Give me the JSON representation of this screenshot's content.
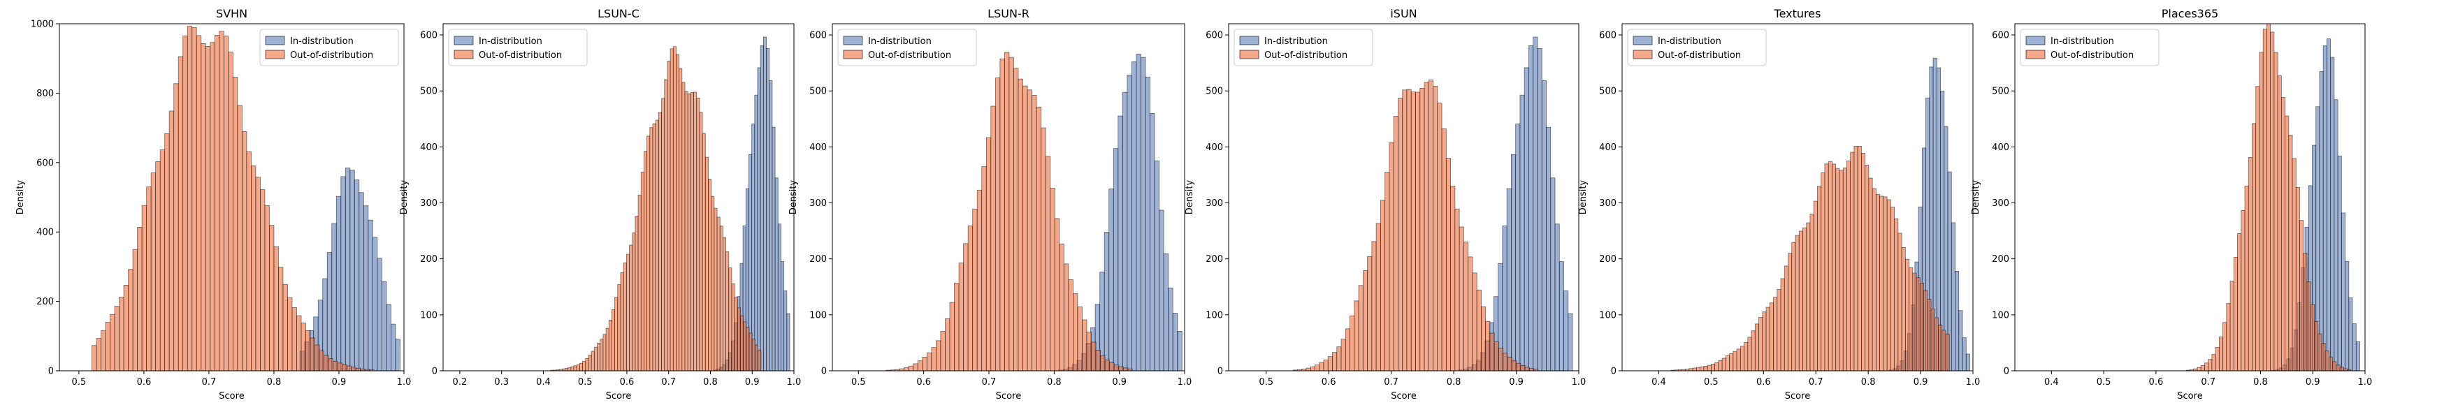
{
  "colors": {
    "in_distribution": "#4c72b0",
    "out_of_distribution": "#f0703c",
    "edge": "#000000"
  },
  "chart_data": [
    {
      "type": "histogram",
      "title": "SVHN",
      "xlabel": "Score",
      "ylabel": "Density",
      "xlim": [
        0.47,
        1.0
      ],
      "ylim": [
        0,
        1000
      ],
      "xticks": [
        0.5,
        0.6,
        0.7,
        0.8,
        0.9,
        1.0
      ],
      "yticks": [
        0,
        200,
        400,
        600,
        800,
        1000
      ],
      "legend": {
        "position": "top-right",
        "entries": [
          "In-distribution",
          "Out-of-distribution"
        ]
      },
      "series": [
        {
          "name": "In-distribution",
          "mean": 0.922,
          "std": 0.036,
          "peak": 580,
          "range": [
            0.84,
            0.99
          ]
        },
        {
          "name": "Out-of-distribution",
          "mean": 0.695,
          "std": 0.075,
          "peak": 995,
          "range": [
            0.52,
            0.95
          ]
        }
      ]
    },
    {
      "type": "histogram",
      "title": "LSUN-C",
      "xlabel": "Score",
      "ylabel": "Density",
      "xlim": [
        0.16,
        1.0
      ],
      "ylim": [
        0,
        620
      ],
      "xticks": [
        0.2,
        0.3,
        0.4,
        0.5,
        0.6,
        0.7,
        0.8,
        0.9,
        1.0
      ],
      "yticks": [
        0,
        100,
        200,
        300,
        400,
        500,
        600
      ],
      "legend": {
        "position": "top-left",
        "entries": [
          "In-distribution",
          "Out-of-distribution"
        ]
      },
      "series": [
        {
          "name": "In-distribution",
          "mean": 0.925,
          "std": 0.033,
          "peak": 585,
          "range": [
            0.78,
            0.99
          ]
        },
        {
          "name": "Out-of-distribution",
          "mean": 0.72,
          "std": 0.085,
          "peak": 550,
          "range": [
            0.2,
            0.92
          ]
        }
      ]
    },
    {
      "type": "histogram",
      "title": "LSUN-R",
      "xlabel": "Score",
      "ylabel": "Density",
      "xlim": [
        0.46,
        1.0
      ],
      "ylim": [
        0,
        620
      ],
      "xticks": [
        0.5,
        0.6,
        0.7,
        0.8,
        0.9,
        1.0
      ],
      "yticks": [
        0,
        100,
        200,
        300,
        400,
        500,
        600
      ],
      "legend": {
        "position": "top-left",
        "entries": [
          "In-distribution",
          "Out-of-distribution"
        ]
      },
      "series": [
        {
          "name": "In-distribution",
          "mean": 0.925,
          "std": 0.033,
          "peak": 585,
          "range": [
            0.8,
            0.99
          ]
        },
        {
          "name": "Out-of-distribution",
          "mean": 0.74,
          "std": 0.055,
          "peak": 560,
          "range": [
            0.5,
            0.92
          ]
        }
      ]
    },
    {
      "type": "histogram",
      "title": "iSUN",
      "xlabel": "Score",
      "ylabel": "Density",
      "xlim": [
        0.44,
        1.0
      ],
      "ylim": [
        0,
        620
      ],
      "xticks": [
        0.5,
        0.6,
        0.7,
        0.8,
        0.9,
        1.0
      ],
      "yticks": [
        0,
        100,
        200,
        300,
        400,
        500,
        600
      ],
      "legend": {
        "position": "top-left",
        "entries": [
          "In-distribution",
          "Out-of-distribution"
        ]
      },
      "series": [
        {
          "name": "In-distribution",
          "mean": 0.925,
          "std": 0.033,
          "peak": 585,
          "range": [
            0.78,
            0.99
          ]
        },
        {
          "name": "Out-of-distribution",
          "mean": 0.745,
          "std": 0.058,
          "peak": 530,
          "range": [
            0.48,
            0.93
          ]
        }
      ]
    },
    {
      "type": "histogram",
      "title": "Textures",
      "xlabel": "Score",
      "ylabel": "Density",
      "xlim": [
        0.33,
        1.0
      ],
      "ylim": [
        0,
        620
      ],
      "xticks": [
        0.4,
        0.5,
        0.6,
        0.7,
        0.8,
        0.9,
        1.0
      ],
      "yticks": [
        0,
        100,
        200,
        300,
        400,
        500,
        600
      ],
      "legend": {
        "position": "top-left",
        "entries": [
          "In-distribution",
          "Out-of-distribution"
        ]
      },
      "series": [
        {
          "name": "In-distribution",
          "mean": 0.93,
          "std": 0.025,
          "peak": 585,
          "range": [
            0.84,
            0.99
          ]
        },
        {
          "name": "Out-of-distribution",
          "mean": 0.765,
          "std": 0.1,
          "peak": 385,
          "range": [
            0.36,
            0.95
          ]
        }
      ]
    },
    {
      "type": "histogram",
      "title": "Places365",
      "xlabel": "Score",
      "ylabel": "Density",
      "xlim": [
        0.33,
        1.0
      ],
      "ylim": [
        0,
        620
      ],
      "xticks": [
        0.4,
        0.5,
        0.6,
        0.7,
        0.8,
        0.9,
        1.0
      ],
      "yticks": [
        0,
        100,
        200,
        300,
        400,
        500,
        600
      ],
      "legend": {
        "position": "top-left",
        "entries": [
          "In-distribution",
          "Out-of-distribution"
        ]
      },
      "series": [
        {
          "name": "In-distribution",
          "mean": 0.925,
          "std": 0.028,
          "peak": 585,
          "range": [
            0.78,
            0.99
          ]
        },
        {
          "name": "Out-of-distribution",
          "mean": 0.82,
          "std": 0.045,
          "peak": 595,
          "range": [
            0.35,
            0.97
          ]
        }
      ]
    }
  ]
}
